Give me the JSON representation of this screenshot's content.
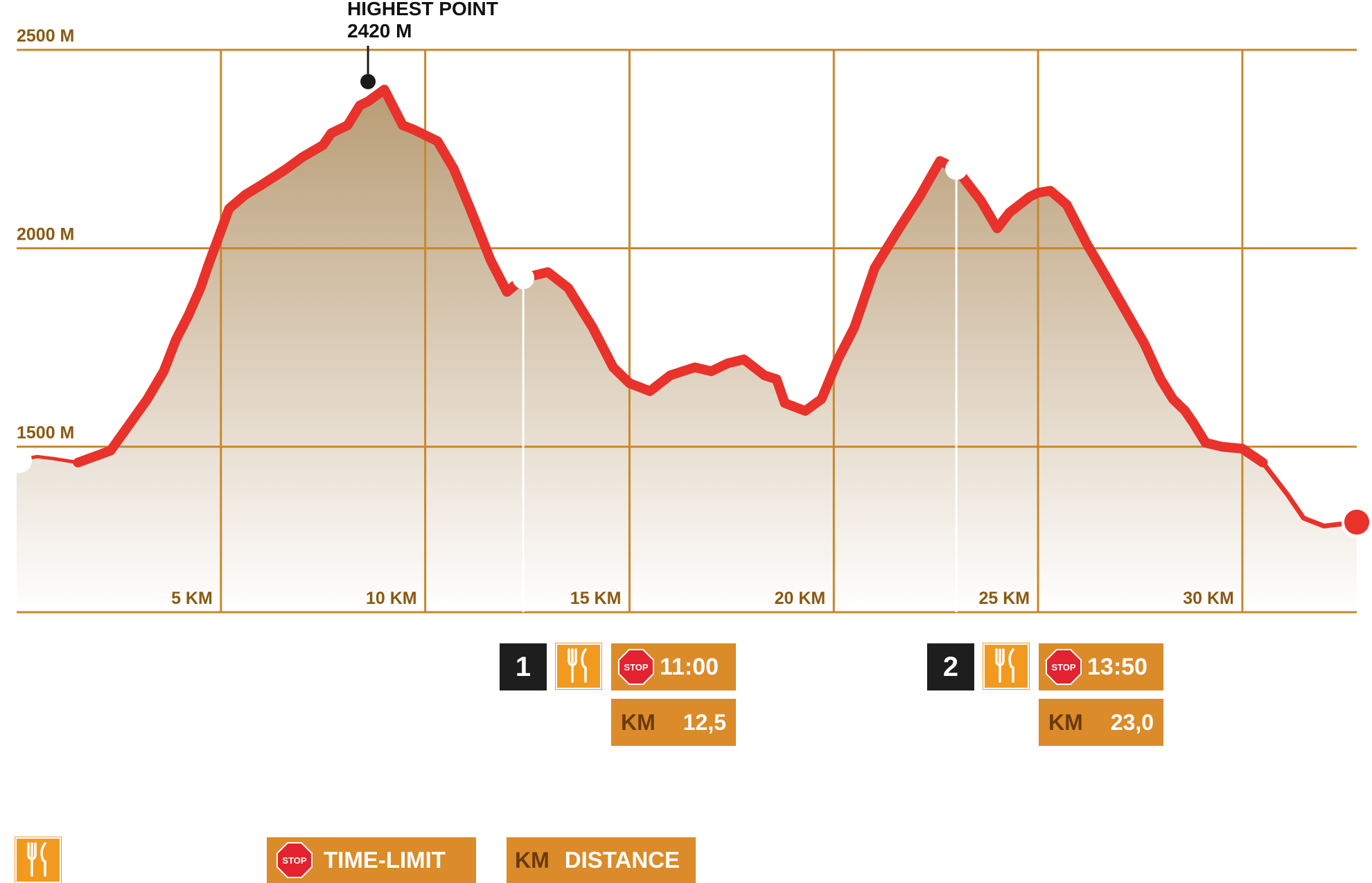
{
  "chart_data": {
    "type": "area",
    "title": "",
    "xlabel": "",
    "ylabel": "",
    "xlim": [
      0,
      32.8
    ],
    "ylim": [
      1070,
      2500
    ],
    "y_ticks": [
      {
        "value": 2500,
        "label": "2500 M"
      },
      {
        "value": 2000,
        "label": "2000 M"
      },
      {
        "value": 1500,
        "label": "1500 M"
      }
    ],
    "x_ticks": [
      {
        "value": 5,
        "label": "5 KM"
      },
      {
        "value": 10,
        "label": "10 KM"
      },
      {
        "value": 15,
        "label": "15 KM"
      },
      {
        "value": 20,
        "label": "20 KM"
      },
      {
        "value": 25,
        "label": "25 KM"
      },
      {
        "value": 30,
        "label": "30 KM"
      }
    ],
    "grid": true,
    "series": [
      {
        "color": "#e8322b",
        "x": [
          0,
          0.5,
          0.9,
          1.5,
          2.3,
          3.2,
          3.6,
          3.9,
          4.2,
          4.5,
          4.7,
          5.2,
          5.6,
          6.0,
          6.3,
          6.6,
          7.0,
          7.5,
          7.7,
          8.1,
          8.4,
          8.6,
          9.0,
          9.3,
          9.45,
          9.7,
          10.3,
          10.7,
          11.1,
          11.6,
          12.0,
          12.4,
          13.0,
          13.5,
          14.1,
          14.6,
          15.0,
          15.5,
          16.0,
          16.6,
          17.0,
          17.4,
          17.8,
          18.3,
          18.6,
          18.8,
          19.3,
          19.7,
          20.1,
          20.5,
          21.0,
          21.6,
          22.1,
          22.6,
          23.0,
          23.6,
          24.0,
          24.3,
          24.8,
          25.0,
          25.3,
          25.7,
          26.2,
          26.6,
          27.1,
          27.6,
          28.0,
          28.3,
          28.6,
          28.8,
          29.1,
          29.5,
          30.0,
          30.5,
          31.1,
          31.5,
          32.0,
          32.8
        ],
        "y": [
          1465,
          1475,
          1470,
          1460,
          1490,
          1620,
          1690,
          1770,
          1830,
          1900,
          1960,
          2100,
          2135,
          2160,
          2180,
          2200,
          2230,
          2260,
          2290,
          2310,
          2360,
          2370,
          2400,
          2340,
          2310,
          2300,
          2270,
          2200,
          2100,
          1970,
          1890,
          1925,
          1940,
          1900,
          1800,
          1700,
          1660,
          1640,
          1680,
          1700,
          1690,
          1710,
          1720,
          1680,
          1670,
          1610,
          1590,
          1620,
          1720,
          1800,
          1950,
          2050,
          2130,
          2220,
          2200,
          2120,
          2050,
          2090,
          2130,
          2140,
          2145,
          2110,
          2010,
          1940,
          1850,
          1760,
          1670,
          1620,
          1590,
          1560,
          1510,
          1500,
          1495,
          1460,
          1380,
          1320,
          1300,
          1310
        ]
      }
    ],
    "annotations": [
      {
        "label_line1": "HIGHEST POINT",
        "label_line2": "2420 M",
        "x": 8.6,
        "y": 2420
      }
    ],
    "markers": [
      {
        "x": 0,
        "y": 1465,
        "color": "#ffffff"
      },
      {
        "x": 12.4,
        "y": 1925,
        "color": "#ffffff"
      },
      {
        "x": 23.0,
        "y": 2200,
        "color": "#ffffff"
      },
      {
        "x": 32.8,
        "y": 1310,
        "color": "#e8322b"
      }
    ]
  },
  "stations": [
    {
      "number": "1",
      "km": 12.5,
      "time": "11:00",
      "km_label": "KM",
      "km_value": "12,5"
    },
    {
      "number": "2",
      "km": 23.0,
      "time": "13:50",
      "km_label": "KM",
      "km_value": "23,0"
    }
  ],
  "legend": {
    "stop_sign_text": "STOP",
    "time_limit_label": "TIME-LIMIT",
    "km_label": "KM",
    "distance_label": "DISTANCE"
  },
  "colors": {
    "grid": "#c8872a",
    "axis_text": "#8a5a12",
    "line": "#e8322b",
    "fill_top": "#b89c74",
    "fill_bottom": "#ffffff",
    "box_orange": "#db8b2a",
    "food_orange": "#f29a1f",
    "station_dark": "#1e1e1e",
    "stop_red": "#e3232f"
  },
  "icons": [
    "fork-knife-icon",
    "stop-sign-icon"
  ]
}
